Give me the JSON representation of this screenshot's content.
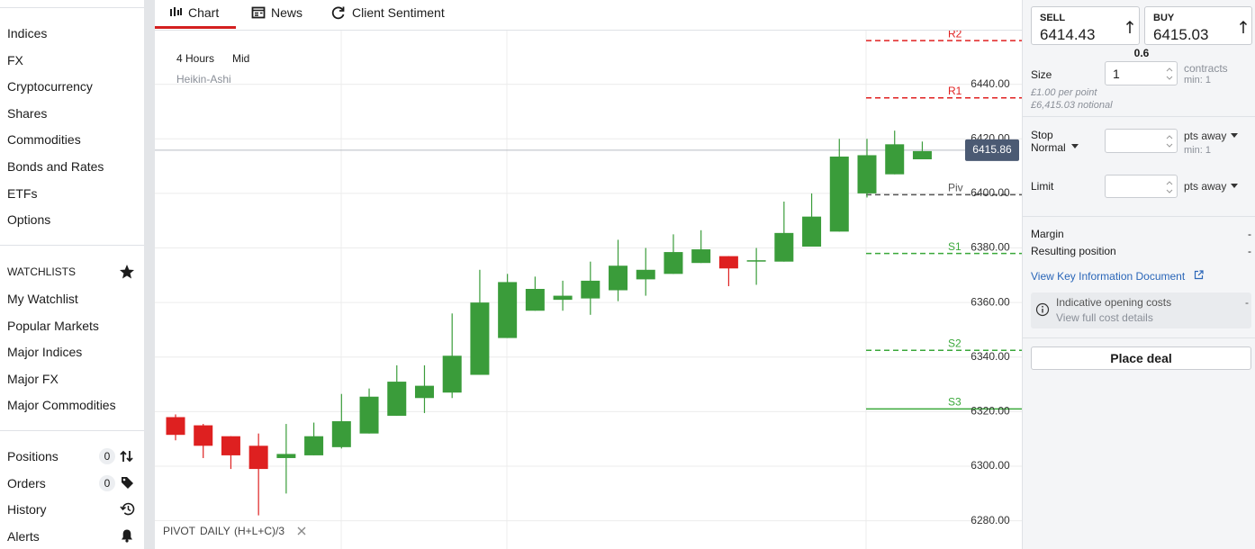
{
  "sidebar": {
    "markets": [
      "Indices",
      "FX",
      "Cryptocurrency",
      "Shares",
      "Commodities",
      "Bonds and Rates",
      "ETFs",
      "Options"
    ],
    "watchlists_title": "WATCHLISTS",
    "watchlists": [
      "My Watchlist",
      "Popular Markets",
      "Major Indices",
      "Major FX",
      "Major Commodities"
    ],
    "account": [
      {
        "label": "Positions",
        "count": 0
      },
      {
        "label": "Orders",
        "count": 0
      },
      {
        "label": "History"
      },
      {
        "label": "Alerts"
      }
    ]
  },
  "tabs": [
    "Chart",
    "News",
    "Client Sentiment"
  ],
  "chart_header": {
    "interval": "4 Hours",
    "price": "Mid",
    "style": "Heikin-Ashi"
  },
  "indicator": {
    "name": "PIVOT",
    "period": "DAILY",
    "formula": "(H+L+C)/3"
  },
  "chart_data": {
    "type": "candlestick",
    "up_color": "#3a9c3a",
    "down_color": "#de2020",
    "open": [
      6318,
      6315,
      6311,
      6307.5,
      6303,
      6304,
      6307,
      6312,
      6318.5,
      6325,
      6327,
      6333.5,
      6347,
      6357,
      6361,
      6361.5,
      6364.5,
      6368.5,
      6370.5,
      6374.5,
      6377,
      6375,
      6375,
      6380.5,
      6386,
      6400,
      6407,
      6412.5
    ],
    "high": [
      6319,
      6315.5,
      6311,
      6312,
      6315.5,
      6316,
      6326.5,
      6328.5,
      6337,
      6337,
      6356,
      6372,
      6370.5,
      6369.5,
      6368,
      6375,
      6383,
      6380,
      6385,
      6386.5,
      6377,
      6380,
      6397,
      6400,
      6420,
      6420,
      6423,
      6419
    ],
    "low": [
      6309.5,
      6303,
      6299,
      6282,
      6290,
      6304,
      6306.5,
      6312,
      6318.5,
      6319.5,
      6325,
      6333.5,
      6347,
      6357,
      6357,
      6355.5,
      6360.5,
      6362.5,
      6370.5,
      6374.5,
      6366,
      6366.5,
      6375,
      6380.5,
      6386,
      6398.5,
      6407,
      6412.5
    ],
    "close": [
      6311.5,
      6307.5,
      6304,
      6299,
      6304.5,
      6311,
      6316.5,
      6325.5,
      6331,
      6329.5,
      6340.5,
      6360,
      6367.5,
      6365,
      6362.5,
      6368,
      6373.5,
      6372,
      6378.5,
      6379.5,
      6372.5,
      6375.5,
      6385.5,
      6391.5,
      6413.5,
      6414,
      6418,
      6415.5
    ],
    "ylim": [
      6270,
      6460
    ],
    "yticks": [
      {
        "value": 6440,
        "label": "6440.00"
      },
      {
        "value": 6420,
        "label": "6420.00"
      },
      {
        "value": 6400,
        "label": "6400.00"
      },
      {
        "value": 6380,
        "label": "6380.00"
      },
      {
        "value": 6360,
        "label": "6360.00"
      },
      {
        "value": 6340,
        "label": "6340.00"
      },
      {
        "value": 6320,
        "label": "6320.00"
      },
      {
        "value": 6300,
        "label": "6300.00"
      },
      {
        "value": 6280,
        "label": "6280.00"
      }
    ],
    "grid": true,
    "current_price": 6415.86,
    "pivots": [
      {
        "name": "R2",
        "value": 6456,
        "color": "#e02020",
        "style": "dashed"
      },
      {
        "name": "R1",
        "value": 6435,
        "color": "#e02020",
        "style": "dashed"
      },
      {
        "name": "Piv",
        "value": 6399.5,
        "color": "#555555",
        "style": "dashed"
      },
      {
        "name": "S1",
        "value": 6378,
        "color": "#3aa83a",
        "style": "dashed"
      },
      {
        "name": "S2",
        "value": 6342.5,
        "color": "#3aa83a",
        "style": "dashed"
      },
      {
        "name": "S3",
        "value": 6321,
        "color": "#3aa83a",
        "style": "solid"
      }
    ]
  },
  "deal_ticket": {
    "sell_label": "SELL",
    "sell_price": "6414.43",
    "buy_label": "BUY",
    "buy_price": "6415.03",
    "spread": "0.6",
    "size_label": "Size",
    "size_value": "1",
    "size_unit": "contracts",
    "size_min": "min: 1",
    "per_point": "£1.00 per point",
    "notional": "£6,415.03 notional",
    "stop_label": "Stop",
    "stop_type": "Normal",
    "stop_unit": "pts away",
    "stop_min": "min: 1",
    "limit_label": "Limit",
    "limit_unit": "pts away",
    "margin_label": "Margin",
    "margin_value": "-",
    "position_label": "Resulting position",
    "position_value": "-",
    "kid_link": "View Key Information Document",
    "costs_label": "Indicative opening costs",
    "costs_value": "-",
    "costs_link": "View full cost details",
    "place_deal": "Place deal"
  }
}
